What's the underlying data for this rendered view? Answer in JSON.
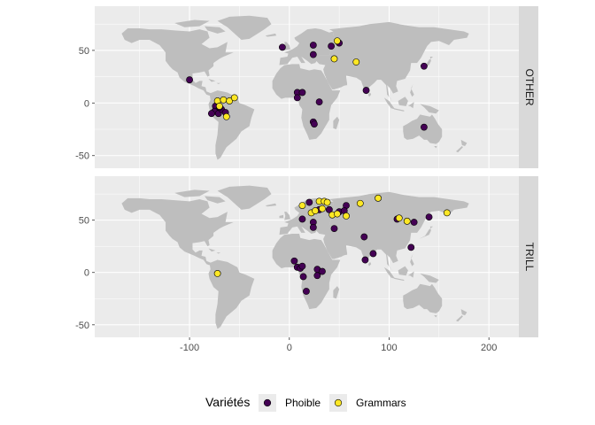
{
  "chart_data": {
    "type": "scatter",
    "title": "",
    "xlabel": "",
    "ylabel": "",
    "xlim": [
      -195,
      230
    ],
    "ylim": [
      -62,
      92
    ],
    "x_ticks": [
      -100,
      0,
      100,
      200
    ],
    "y_ticks": [
      -50,
      0,
      50
    ],
    "x_tick_labels": [
      "-100",
      "0",
      "100",
      "200"
    ],
    "y_tick_labels": [
      "-50",
      "0",
      "50"
    ],
    "background": "world map (land polygons)",
    "colors": {
      "panel": "#ebebeb",
      "grid": "#ffffff",
      "land": "#bebebe",
      "strip": "#d9d9d9",
      "Phoible": "#440154",
      "Grammars": "#FDE725"
    },
    "legend": {
      "title": "Variétés",
      "position": "bottom",
      "entries": [
        "Phoible",
        "Grammars"
      ]
    },
    "panels": [
      {
        "strip_label": "OTHER",
        "series": [
          {
            "name": "Phoible",
            "points": [
              {
                "x": -100,
                "y": 22
              },
              {
                "x": -74,
                "y": -3
              },
              {
                "x": -75,
                "y": -8
              },
              {
                "x": -71,
                "y": -10
              },
              {
                "x": -68,
                "y": -6
              },
              {
                "x": -64,
                "y": -9
              },
              {
                "x": -78,
                "y": -10
              },
              {
                "x": -70,
                "y": -4
              },
              {
                "x": -7,
                "y": 53
              },
              {
                "x": 24,
                "y": 55
              },
              {
                "x": 24,
                "y": 46
              },
              {
                "x": 42,
                "y": 54
              },
              {
                "x": 50,
                "y": 57
              },
              {
                "x": 8,
                "y": 10
              },
              {
                "x": 8,
                "y": 5
              },
              {
                "x": 13,
                "y": 10
              },
              {
                "x": 30,
                "y": 1
              },
              {
                "x": 24,
                "y": -18
              },
              {
                "x": 25,
                "y": -20
              },
              {
                "x": 77,
                "y": 12
              },
              {
                "x": 135,
                "y": 35
              },
              {
                "x": 135,
                "y": -23
              }
            ]
          },
          {
            "name": "Grammars",
            "points": [
              {
                "x": -72,
                "y": 2
              },
              {
                "x": -70,
                "y": -3
              },
              {
                "x": -66,
                "y": 3
              },
              {
                "x": -60,
                "y": 2
              },
              {
                "x": -55,
                "y": 5
              },
              {
                "x": -63,
                "y": -13
              },
              {
                "x": 48,
                "y": 59
              },
              {
                "x": 45,
                "y": 42
              },
              {
                "x": 67,
                "y": 39
              }
            ]
          }
        ]
      },
      {
        "strip_label": "TRILL",
        "series": [
          {
            "name": "Phoible",
            "points": [
              {
                "x": 13,
                "y": 51
              },
              {
                "x": 24,
                "y": 48
              },
              {
                "x": 24,
                "y": 43
              },
              {
                "x": 30,
                "y": 60
              },
              {
                "x": 20,
                "y": 67
              },
              {
                "x": 40,
                "y": 60
              },
              {
                "x": 50,
                "y": 58
              },
              {
                "x": 57,
                "y": 64
              },
              {
                "x": 55,
                "y": 59
              },
              {
                "x": 45,
                "y": 42
              },
              {
                "x": 75,
                "y": 34
              },
              {
                "x": 76,
                "y": 12
              },
              {
                "x": 84,
                "y": 18
              },
              {
                "x": 108,
                "y": 51
              },
              {
                "x": 125,
                "y": 48
              },
              {
                "x": 140,
                "y": 53
              },
              {
                "x": 122,
                "y": 24
              },
              {
                "x": 5,
                "y": 11
              },
              {
                "x": 8,
                "y": 5
              },
              {
                "x": 11,
                "y": 4
              },
              {
                "x": 13,
                "y": 6
              },
              {
                "x": 14,
                "y": -4
              },
              {
                "x": 17,
                "y": -18
              },
              {
                "x": 28,
                "y": 3
              },
              {
                "x": 33,
                "y": 1
              },
              {
                "x": 28,
                "y": -3
              }
            ]
          },
          {
            "name": "Grammars",
            "points": [
              {
                "x": -72,
                "y": -1
              },
              {
                "x": 13,
                "y": 64
              },
              {
                "x": 22,
                "y": 57
              },
              {
                "x": 26,
                "y": 59
              },
              {
                "x": 30,
                "y": 68
              },
              {
                "x": 35,
                "y": 68
              },
              {
                "x": 38,
                "y": 67
              },
              {
                "x": 33,
                "y": 61
              },
              {
                "x": 43,
                "y": 55
              },
              {
                "x": 48,
                "y": 56
              },
              {
                "x": 57,
                "y": 54
              },
              {
                "x": 71,
                "y": 66
              },
              {
                "x": 89,
                "y": 71
              },
              {
                "x": 110,
                "y": 52
              },
              {
                "x": 118,
                "y": 49
              },
              {
                "x": 158,
                "y": 57
              }
            ]
          }
        ]
      }
    ]
  }
}
